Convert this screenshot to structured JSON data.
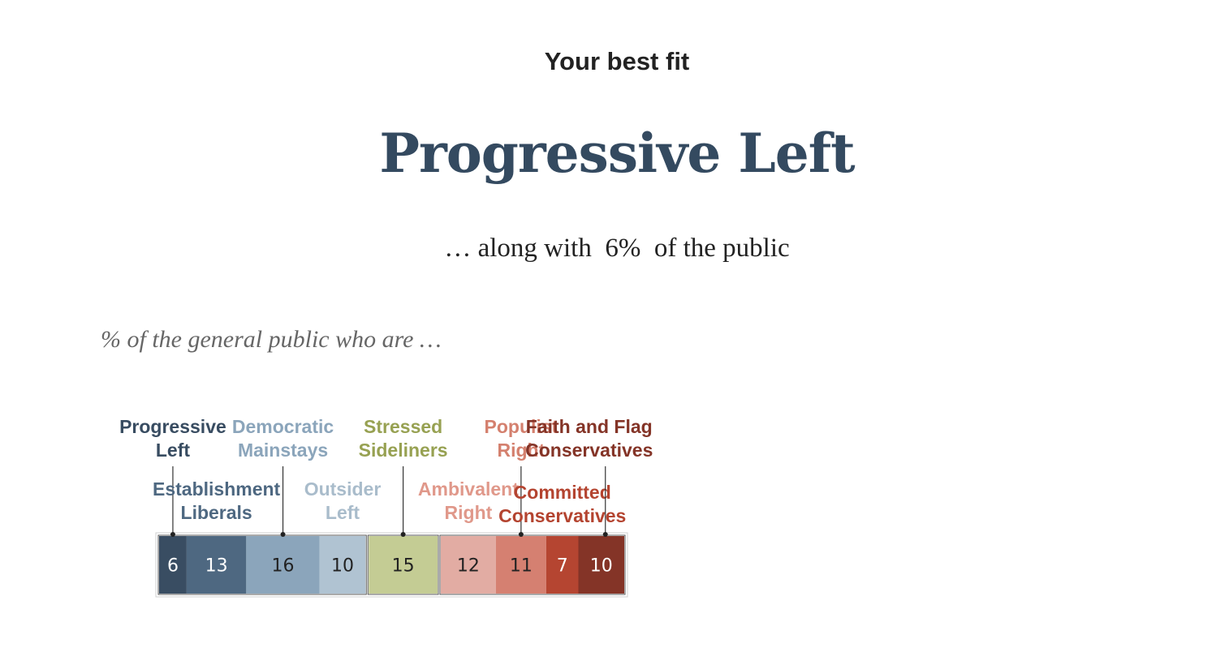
{
  "header": {
    "kicker": "Your best fit",
    "result_title": "Progressive Left",
    "share_prefix": "… along with ",
    "share_pct": " 6% ",
    "share_suffix": " of the public"
  },
  "caption": "% of the general public who are …",
  "chart_data": {
    "type": "bar",
    "orientation": "horizontal-stacked",
    "categories": [
      "Progressive Left",
      "Establishment Liberals",
      "Democratic Mainstays",
      "Outsider Left",
      "Stressed Sideliners",
      "Ambivalent Right",
      "Populist Right",
      "Committed Conservatives",
      "Faith and Flag Conservatives"
    ],
    "values": [
      6,
      13,
      16,
      10,
      15,
      12,
      11,
      7,
      10
    ],
    "labels": [
      [
        "Progressive",
        "Left"
      ],
      [
        "Establishment",
        "Liberals"
      ],
      [
        "Democratic",
        "Mainstays"
      ],
      [
        "Outsider",
        "Left"
      ],
      [
        "Stressed",
        "Sideliners"
      ],
      [
        "Ambivalent",
        "Right"
      ],
      [
        "Populist",
        "Right"
      ],
      [
        "Committed",
        "Conservatives"
      ],
      [
        "Faith and Flag",
        "Conservatives"
      ]
    ],
    "colors": [
      "#394d62",
      "#4e6881",
      "#8ba5bb",
      "#b0c3d2",
      "#c4cc94",
      "#e2aca3",
      "#d58071",
      "#b54531",
      "#843427"
    ],
    "label_colors": [
      "#384c61",
      "#4e6881",
      "#8ba5bb",
      "#a9bccb",
      "#97a152",
      "#e0988a",
      "#d4806e",
      "#b44430",
      "#843427"
    ],
    "value_text_colors": [
      "#ffffff",
      "#ffffff",
      "#222222",
      "#222222",
      "#222222",
      "#222222",
      "#222222",
      "#ffffff",
      "#ffffff"
    ],
    "groups": [
      [
        0,
        1,
        2,
        3
      ],
      [
        4
      ],
      [
        5,
        6,
        7,
        8
      ]
    ],
    "title": "",
    "xlabel": "",
    "ylabel": ""
  }
}
